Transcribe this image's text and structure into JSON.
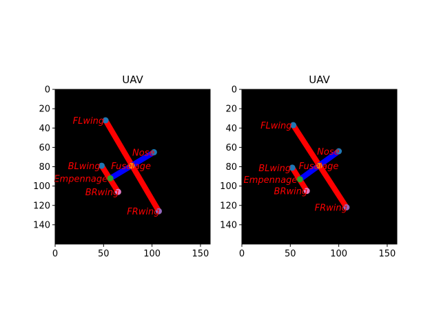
{
  "chart_data": [
    {
      "type": "scatter",
      "title": "UAV",
      "xlim": [
        0,
        160
      ],
      "ylim": [
        160,
        0
      ],
      "y_inverted": true,
      "xticks": [
        0,
        50,
        100,
        150
      ],
      "yticks": [
        0,
        20,
        40,
        60,
        80,
        100,
        120,
        140
      ],
      "background": "#000000",
      "keypoints": [
        {
          "name": "FLwing",
          "x": 52,
          "y": 32,
          "color": "#1f77b4"
        },
        {
          "name": "Nose",
          "x": 102,
          "y": 65,
          "color": "#1f77b4"
        },
        {
          "name": "Fuselage",
          "x": 79,
          "y": 79,
          "color": "#ff7f0e"
        },
        {
          "name": "BLwing",
          "x": 48,
          "y": 79,
          "color": "#1f77b4"
        },
        {
          "name": "Empennage",
          "x": 57,
          "y": 92,
          "color": "#2ca02c"
        },
        {
          "name": "BRwing",
          "x": 65,
          "y": 106,
          "color": "#e377c2"
        },
        {
          "name": "FRwing",
          "x": 107,
          "y": 126,
          "color": "#9467bd"
        }
      ],
      "segments": [
        {
          "from": "FLwing",
          "to": "FRwing",
          "color": "#ff0000"
        },
        {
          "from": "BLwing",
          "to": "BRwing",
          "color": "#ff0000"
        },
        {
          "from": "Nose",
          "to": "Empennage",
          "color": "#0000ff"
        }
      ],
      "label_color": "#ff0000"
    },
    {
      "type": "scatter",
      "title": "UAV",
      "xlim": [
        0,
        160
      ],
      "ylim": [
        160,
        0
      ],
      "y_inverted": true,
      "xticks": [
        0,
        50,
        100,
        150
      ],
      "yticks": [
        0,
        20,
        40,
        60,
        80,
        100,
        120,
        140
      ],
      "background": "#000000",
      "keypoints": [
        {
          "name": "FLwing",
          "x": 53,
          "y": 37,
          "color": "#1f77b4"
        },
        {
          "name": "Nose",
          "x": 100,
          "y": 64,
          "color": "#1f77b4"
        },
        {
          "name": "Fuselage",
          "x": 80,
          "y": 79,
          "color": "#ff7f0e"
        },
        {
          "name": "BLwing",
          "x": 52,
          "y": 81,
          "color": "#1f77b4"
        },
        {
          "name": "Empennage",
          "x": 60,
          "y": 93,
          "color": "#2ca02c"
        },
        {
          "name": "BRwing",
          "x": 67,
          "y": 105,
          "color": "#e377c2"
        },
        {
          "name": "FRwing",
          "x": 108,
          "y": 122,
          "color": "#9467bd"
        }
      ],
      "segments": [
        {
          "from": "FLwing",
          "to": "FRwing",
          "color": "#ff0000"
        },
        {
          "from": "BLwing",
          "to": "BRwing",
          "color": "#ff0000"
        },
        {
          "from": "Nose",
          "to": "Empennage",
          "color": "#0000ff"
        }
      ],
      "label_color": "#ff0000"
    }
  ]
}
